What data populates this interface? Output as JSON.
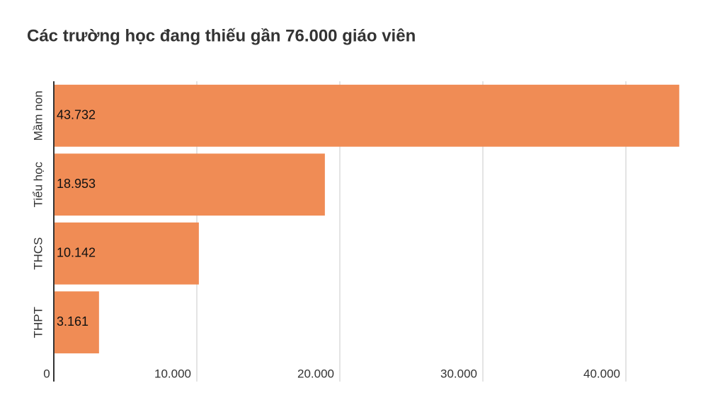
{
  "chart_data": {
    "type": "bar",
    "orientation": "horizontal",
    "title": "Các trường học đang thiếu gần 76.000 giáo viên",
    "categories": [
      "Mầm non",
      "Tiểu học",
      "THCS",
      "THPT"
    ],
    "values": [
      43732,
      18953,
      10142,
      3161
    ],
    "value_labels": [
      "43.732",
      "18.953",
      "10.142",
      "3.161"
    ],
    "color": "#f08c55",
    "xlim": [
      0,
      45000
    ],
    "xticks": [
      0,
      {
        "value": 10000,
        "label": "10.000"
      },
      {
        "value": 20000,
        "label": "20.000"
      },
      {
        "value": 30000,
        "label": "30.000"
      },
      {
        "value": 40000,
        "label": "40.000"
      }
    ],
    "grid": true
  }
}
